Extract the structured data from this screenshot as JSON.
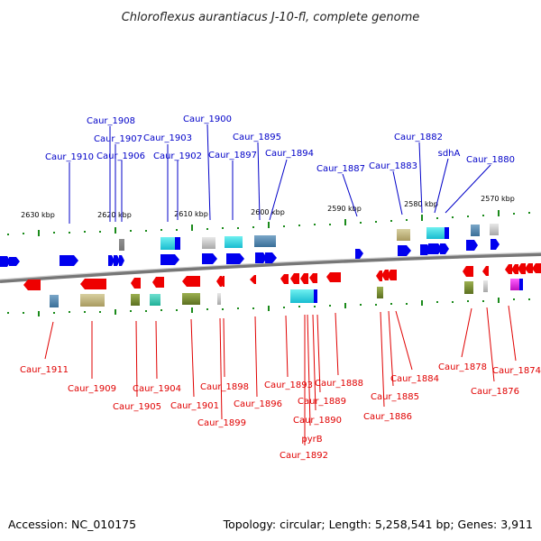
{
  "title": "Chloroflexus aurantiacus J-10-fl, complete genome",
  "footer": {
    "accession": "Accession: NC_010175",
    "summary": "Topology: circular; Length: 5,258,541 bp; Genes: 3,911"
  },
  "colors": {
    "forward": "#0000ee",
    "reverse": "#ee0000",
    "backbone": "#888888",
    "tick": "#1a8a1a",
    "label_forward": "#0000c8",
    "label_reverse": "#e00000"
  },
  "ticks": [
    "2630 kbp",
    "2620 kbp",
    "2610 kbp",
    "2600 kbp",
    "2590 kbp",
    "2580 kbp",
    "2570 kbp"
  ],
  "genes_forward": [
    "Caur_1910",
    "Caur_1908",
    "Caur_1907",
    "Caur_1906",
    "Caur_1903",
    "Caur_1902",
    "Caur_1900",
    "Caur_1897",
    "Caur_1895",
    "Caur_1894",
    "Caur_1887",
    "Caur_1883",
    "Caur_1882",
    "sdhA",
    "Caur_1880"
  ],
  "genes_reverse": [
    "Caur_1911",
    "Caur_1909",
    "Caur_1905",
    "Caur_1904",
    "Caur_1901",
    "Caur_1898",
    "Caur_1899",
    "Caur_1896",
    "Caur_1893",
    "Caur_1888",
    "Caur_1889",
    "Caur_1890",
    "pyrB",
    "Caur_1892",
    "Caur_1885",
    "Caur_1884",
    "Caur_1886",
    "Caur_1878",
    "Caur_1876",
    "Caur_1874"
  ]
}
